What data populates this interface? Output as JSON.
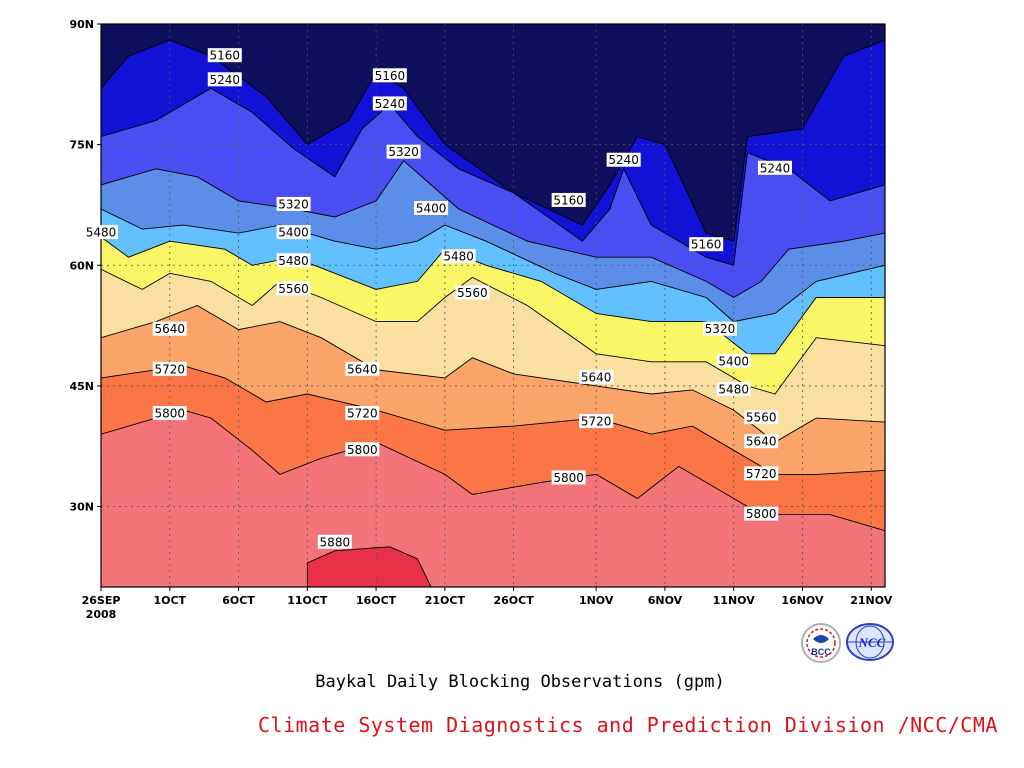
{
  "chart_data": {
    "type": "heatmap",
    "subtype": "filled-contour time-latitude section",
    "title": "Baykal Daily Blocking Observations (gpm)",
    "x_tick_labels": [
      "26SEP",
      "1OCT",
      "6OCT",
      "11OCT",
      "16OCT",
      "21OCT",
      "26OCT",
      "1NOV",
      "6NOV",
      "11NOV",
      "16NOV",
      "21NOV"
    ],
    "x_year_label": "2008",
    "y_tick_labels": [
      "30N",
      "45N",
      "60N",
      "75N",
      "90N"
    ],
    "x_range": [
      "2008-09-26",
      "2008-11-22"
    ],
    "ylim": [
      20,
      90
    ],
    "grid": true,
    "contour_levels": [
      5160,
      5240,
      5320,
      5400,
      5480,
      5560,
      5640,
      5720,
      5800,
      5880
    ],
    "level_colors": [
      "#0f0f5e",
      "#1212d6",
      "#4a4ef2",
      "#5a8ee8",
      "#62c0ff",
      "#faf766",
      "#fbdfa0",
      "#fba46a",
      "#fa7646",
      "#f27478",
      "#e83048"
    ],
    "contours": [
      {
        "level": 5880,
        "points": [
          {
            "x": "2008-10-11",
            "y": 20
          },
          {
            "x": "2008-10-11",
            "y": 23
          },
          {
            "x": "2008-10-13",
            "y": 24.5
          },
          {
            "x": "2008-10-17",
            "y": 25
          },
          {
            "x": "2008-10-19",
            "y": 23.5
          },
          {
            "x": "2008-10-20",
            "y": 20
          }
        ]
      },
      {
        "level": 5800,
        "points": [
          {
            "x": "2008-09-26",
            "y": 39
          },
          {
            "x": "2008-09-30",
            "y": 41
          },
          {
            "x": "2008-10-02",
            "y": 42
          },
          {
            "x": "2008-10-04",
            "y": 41
          },
          {
            "x": "2008-10-07",
            "y": 37
          },
          {
            "x": "2008-10-09",
            "y": 34
          },
          {
            "x": "2008-10-12",
            "y": 36
          },
          {
            "x": "2008-10-16",
            "y": 38
          },
          {
            "x": "2008-10-21",
            "y": 34
          },
          {
            "x": "2008-10-23",
            "y": 31.5
          },
          {
            "x": "2008-10-28",
            "y": 33
          },
          {
            "x": "2008-11-01",
            "y": 34
          },
          {
            "x": "2008-11-04",
            "y": 31
          },
          {
            "x": "2008-11-07",
            "y": 35
          },
          {
            "x": "2008-11-09",
            "y": 33
          },
          {
            "x": "2008-11-13",
            "y": 29
          },
          {
            "x": "2008-11-18",
            "y": 29
          },
          {
            "x": "2008-11-22",
            "y": 27
          }
        ]
      },
      {
        "level": 5720,
        "points": [
          {
            "x": "2008-09-26",
            "y": 46
          },
          {
            "x": "2008-09-30",
            "y": 47
          },
          {
            "x": "2008-10-02",
            "y": 47.5
          },
          {
            "x": "2008-10-05",
            "y": 46
          },
          {
            "x": "2008-10-08",
            "y": 43
          },
          {
            "x": "2008-10-11",
            "y": 44
          },
          {
            "x": "2008-10-16",
            "y": 42
          },
          {
            "x": "2008-10-21",
            "y": 39.5
          },
          {
            "x": "2008-10-26",
            "y": 40
          },
          {
            "x": "2008-11-01",
            "y": 41
          },
          {
            "x": "2008-11-05",
            "y": 39
          },
          {
            "x": "2008-11-08",
            "y": 40
          },
          {
            "x": "2008-11-11",
            "y": 37
          },
          {
            "x": "2008-11-14",
            "y": 34
          },
          {
            "x": "2008-11-17",
            "y": 34
          },
          {
            "x": "2008-11-22",
            "y": 34.5
          }
        ]
      },
      {
        "level": 5640,
        "points": [
          {
            "x": "2008-09-26",
            "y": 51
          },
          {
            "x": "2008-09-30",
            "y": 53
          },
          {
            "x": "2008-10-03",
            "y": 55
          },
          {
            "x": "2008-10-06",
            "y": 52
          },
          {
            "x": "2008-10-09",
            "y": 53
          },
          {
            "x": "2008-10-12",
            "y": 51
          },
          {
            "x": "2008-10-16",
            "y": 47
          },
          {
            "x": "2008-10-21",
            "y": 46
          },
          {
            "x": "2008-10-23",
            "y": 48.5
          },
          {
            "x": "2008-10-26",
            "y": 46.5
          },
          {
            "x": "2008-11-01",
            "y": 45
          },
          {
            "x": "2008-11-05",
            "y": 44
          },
          {
            "x": "2008-11-08",
            "y": 44.5
          },
          {
            "x": "2008-11-11",
            "y": 42
          },
          {
            "x": "2008-11-14",
            "y": 38
          },
          {
            "x": "2008-11-17",
            "y": 41
          },
          {
            "x": "2008-11-22",
            "y": 40.5
          }
        ]
      },
      {
        "level": 5560,
        "points": [
          {
            "x": "2008-09-26",
            "y": 59.5
          },
          {
            "x": "2008-09-29",
            "y": 57
          },
          {
            "x": "2008-10-01",
            "y": 59
          },
          {
            "x": "2008-10-04",
            "y": 58
          },
          {
            "x": "2008-10-07",
            "y": 55
          },
          {
            "x": "2008-10-09",
            "y": 58
          },
          {
            "x": "2008-10-12",
            "y": 56
          },
          {
            "x": "2008-10-16",
            "y": 53
          },
          {
            "x": "2008-10-19",
            "y": 53
          },
          {
            "x": "2008-10-21",
            "y": 56
          },
          {
            "x": "2008-10-23",
            "y": 58.5
          },
          {
            "x": "2008-10-27",
            "y": 55
          },
          {
            "x": "2008-11-01",
            "y": 49
          },
          {
            "x": "2008-11-05",
            "y": 48
          },
          {
            "x": "2008-11-09",
            "y": 48
          },
          {
            "x": "2008-11-12",
            "y": 45
          },
          {
            "x": "2008-11-14",
            "y": 44
          },
          {
            "x": "2008-11-17",
            "y": 51
          },
          {
            "x": "2008-11-22",
            "y": 50
          }
        ]
      },
      {
        "level": 5480,
        "points": [
          {
            "x": "2008-09-26",
            "y": 63.5
          },
          {
            "x": "2008-09-28",
            "y": 61
          },
          {
            "x": "2008-10-01",
            "y": 63
          },
          {
            "x": "2008-10-05",
            "y": 62
          },
          {
            "x": "2008-10-07",
            "y": 60
          },
          {
            "x": "2008-10-10",
            "y": 61
          },
          {
            "x": "2008-10-13",
            "y": 59
          },
          {
            "x": "2008-10-16",
            "y": 57
          },
          {
            "x": "2008-10-19",
            "y": 58
          },
          {
            "x": "2008-10-21",
            "y": 62
          },
          {
            "x": "2008-10-24",
            "y": 60
          },
          {
            "x": "2008-10-28",
            "y": 58
          },
          {
            "x": "2008-11-01",
            "y": 54
          },
          {
            "x": "2008-11-05",
            "y": 53
          },
          {
            "x": "2008-11-09",
            "y": 53
          },
          {
            "x": "2008-11-12",
            "y": 49
          },
          {
            "x": "2008-11-14",
            "y": 49
          },
          {
            "x": "2008-11-17",
            "y": 56
          },
          {
            "x": "2008-11-22",
            "y": 56
          }
        ]
      },
      {
        "level": 5400,
        "points": [
          {
            "x": "2008-09-26",
            "y": 67
          },
          {
            "x": "2008-09-29",
            "y": 64.5
          },
          {
            "x": "2008-10-02",
            "y": 65
          },
          {
            "x": "2008-10-06",
            "y": 64
          },
          {
            "x": "2008-10-09",
            "y": 65
          },
          {
            "x": "2008-10-13",
            "y": 63
          },
          {
            "x": "2008-10-16",
            "y": 62
          },
          {
            "x": "2008-10-19",
            "y": 63
          },
          {
            "x": "2008-10-21",
            "y": 65
          },
          {
            "x": "2008-10-24",
            "y": 63
          },
          {
            "x": "2008-10-29",
            "y": 59
          },
          {
            "x": "2008-11-01",
            "y": 57
          },
          {
            "x": "2008-11-05",
            "y": 58
          },
          {
            "x": "2008-11-09",
            "y": 56
          },
          {
            "x": "2008-11-11",
            "y": 53
          },
          {
            "x": "2008-11-14",
            "y": 54
          },
          {
            "x": "2008-11-17",
            "y": 58
          },
          {
            "x": "2008-11-22",
            "y": 60
          }
        ]
      },
      {
        "level": 5320,
        "points": [
          {
            "x": "2008-09-26",
            "y": 70
          },
          {
            "x": "2008-09-30",
            "y": 72
          },
          {
            "x": "2008-10-03",
            "y": 71
          },
          {
            "x": "2008-10-06",
            "y": 68
          },
          {
            "x": "2008-10-10",
            "y": 67
          },
          {
            "x": "2008-10-13",
            "y": 66
          },
          {
            "x": "2008-10-16",
            "y": 68
          },
          {
            "x": "2008-10-18",
            "y": 73
          },
          {
            "x": "2008-10-20",
            "y": 70
          },
          {
            "x": "2008-10-22",
            "y": 67
          },
          {
            "x": "2008-10-27",
            "y": 63
          },
          {
            "x": "2008-11-01",
            "y": 61
          },
          {
            "x": "2008-11-05",
            "y": 61
          },
          {
            "x": "2008-11-09",
            "y": 58
          },
          {
            "x": "2008-11-11",
            "y": 56
          },
          {
            "x": "2008-11-13",
            "y": 58
          },
          {
            "x": "2008-11-15",
            "y": 62
          },
          {
            "x": "2008-11-19",
            "y": 63
          },
          {
            "x": "2008-11-22",
            "y": 64
          }
        ]
      },
      {
        "level": 5240,
        "points": [
          {
            "x": "2008-09-26",
            "y": 76
          },
          {
            "x": "2008-09-30",
            "y": 78
          },
          {
            "x": "2008-10-04",
            "y": 82
          },
          {
            "x": "2008-10-07",
            "y": 79
          },
          {
            "x": "2008-10-10",
            "y": 74.5
          },
          {
            "x": "2008-10-13",
            "y": 71
          },
          {
            "x": "2008-10-15",
            "y": 77
          },
          {
            "x": "2008-10-17",
            "y": 80
          },
          {
            "x": "2008-10-19",
            "y": 76
          },
          {
            "x": "2008-10-22",
            "y": 72
          },
          {
            "x": "2008-10-26",
            "y": 69
          },
          {
            "x": "2008-10-31",
            "y": 63
          },
          {
            "x": "2008-11-02",
            "y": 67
          },
          {
            "x": "2008-11-03",
            "y": 72
          },
          {
            "x": "2008-11-05",
            "y": 65
          },
          {
            "x": "2008-11-09",
            "y": 61
          },
          {
            "x": "2008-11-11",
            "y": 60
          },
          {
            "x": "2008-11-12",
            "y": 74
          },
          {
            "x": "2008-11-15",
            "y": 72
          },
          {
            "x": "2008-11-18",
            "y": 68
          },
          {
            "x": "2008-11-22",
            "y": 70
          }
        ]
      },
      {
        "level": 5160,
        "points": [
          {
            "x": "2008-09-26",
            "y": 82
          },
          {
            "x": "2008-09-28",
            "y": 86
          },
          {
            "x": "2008-10-01",
            "y": 88
          },
          {
            "x": "2008-10-04",
            "y": 86
          },
          {
            "x": "2008-10-08",
            "y": 81
          },
          {
            "x": "2008-10-11",
            "y": 75
          },
          {
            "x": "2008-10-14",
            "y": 78
          },
          {
            "x": "2008-10-16",
            "y": 84
          },
          {
            "x": "2008-10-18",
            "y": 82
          },
          {
            "x": "2008-10-21",
            "y": 75
          },
          {
            "x": "2008-10-26",
            "y": 69
          },
          {
            "x": "2008-10-31",
            "y": 65
          },
          {
            "x": "2008-11-02",
            "y": 70
          },
          {
            "x": "2008-11-04",
            "y": 76
          },
          {
            "x": "2008-11-06",
            "y": 75
          },
          {
            "x": "2008-11-09",
            "y": 64
          },
          {
            "x": "2008-11-11",
            "y": 63
          },
          {
            "x": "2008-11-12",
            "y": 76
          },
          {
            "x": "2008-11-16",
            "y": 77
          },
          {
            "x": "2008-11-19",
            "y": 86
          },
          {
            "x": "2008-11-22",
            "y": 88
          }
        ]
      }
    ],
    "contour_labels": [
      {
        "text": "5160",
        "x": "2008-10-05",
        "y": 86
      },
      {
        "text": "5160",
        "x": "2008-10-17",
        "y": 83.5
      },
      {
        "text": "5160",
        "x": "2008-10-30",
        "y": 68
      },
      {
        "text": "5160",
        "x": "2008-11-09",
        "y": 62.5
      },
      {
        "text": "5240",
        "x": "2008-10-05",
        "y": 83
      },
      {
        "text": "5240",
        "x": "2008-10-17",
        "y": 80
      },
      {
        "text": "5240",
        "x": "2008-11-03",
        "y": 73
      },
      {
        "text": "5240",
        "x": "2008-11-14",
        "y": 72
      },
      {
        "text": "5320",
        "x": "2008-10-10",
        "y": 67.5
      },
      {
        "text": "5320",
        "x": "2008-10-18",
        "y": 74
      },
      {
        "text": "5320",
        "x": "2008-11-10",
        "y": 52
      },
      {
        "text": "5400",
        "x": "2008-10-10",
        "y": 64
      },
      {
        "text": "5400",
        "x": "2008-10-20",
        "y": 67
      },
      {
        "text": "5400",
        "x": "2008-11-11",
        "y": 48
      },
      {
        "text": "5480",
        "x": "2008-09-26",
        "y": 64
      },
      {
        "text": "5480",
        "x": "2008-10-10",
        "y": 60.5
      },
      {
        "text": "5480",
        "x": "2008-10-22",
        "y": 61
      },
      {
        "text": "5480",
        "x": "2008-11-11",
        "y": 44.5
      },
      {
        "text": "5560",
        "x": "2008-10-10",
        "y": 57
      },
      {
        "text": "5560",
        "x": "2008-10-23",
        "y": 56.5
      },
      {
        "text": "5560",
        "x": "2008-11-13",
        "y": 41
      },
      {
        "text": "5640",
        "x": "2008-10-01",
        "y": 52
      },
      {
        "text": "5640",
        "x": "2008-10-15",
        "y": 47
      },
      {
        "text": "5640",
        "x": "2008-11-01",
        "y": 46
      },
      {
        "text": "5640",
        "x": "2008-11-13",
        "y": 38
      },
      {
        "text": "5720",
        "x": "2008-10-01",
        "y": 47
      },
      {
        "text": "5720",
        "x": "2008-10-15",
        "y": 41.5
      },
      {
        "text": "5720",
        "x": "2008-11-01",
        "y": 40.5
      },
      {
        "text": "5720",
        "x": "2008-11-13",
        "y": 34
      },
      {
        "text": "5800",
        "x": "2008-10-01",
        "y": 41.5
      },
      {
        "text": "5800",
        "x": "2008-10-15",
        "y": 37
      },
      {
        "text": "5800",
        "x": "2008-10-30",
        "y": 33.5
      },
      {
        "text": "5800",
        "x": "2008-11-13",
        "y": 29
      },
      {
        "text": "5880",
        "x": "2008-10-13",
        "y": 25.5
      }
    ],
    "source_line": "Climate System Diagnostics and Prediction Division /NCC/CMA"
  },
  "logos": {
    "bcc_label": "BCC",
    "ncc_label": "NCC"
  }
}
